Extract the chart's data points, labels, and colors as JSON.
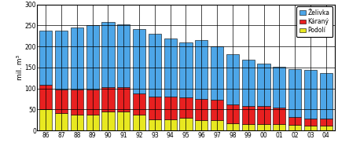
{
  "years": [
    "86",
    "87",
    "88",
    "89",
    "90",
    "91",
    "92",
    "93",
    "94",
    "95",
    "96",
    "97",
    "98",
    "99",
    "00",
    "01",
    "02",
    "03",
    "04"
  ],
  "podoli": [
    50,
    42,
    38,
    38,
    46,
    45,
    37,
    27,
    27,
    30,
    25,
    25,
    18,
    15,
    15,
    15,
    13,
    12,
    12
  ],
  "karany": [
    58,
    55,
    60,
    60,
    58,
    58,
    52,
    53,
    53,
    48,
    50,
    48,
    44,
    44,
    44,
    40,
    20,
    17,
    17
  ],
  "zelivka": [
    130,
    140,
    148,
    152,
    154,
    150,
    153,
    150,
    140,
    132,
    140,
    128,
    120,
    110,
    100,
    97,
    113,
    115,
    108
  ],
  "zelivka_color": "#4da6e8",
  "karany_color": "#e82020",
  "podoli_color": "#e8e820",
  "ylabel": "mil. m³",
  "ylim": [
    0,
    300
  ],
  "yticks": [
    0,
    50,
    100,
    150,
    200,
    250,
    300
  ],
  "legend_labels": [
    "Želivka",
    "Káraný",
    "Podolí"
  ],
  "bg_color": "#ffffff",
  "bar_edge_color": "#000000",
  "bar_linewidth": 0.4
}
